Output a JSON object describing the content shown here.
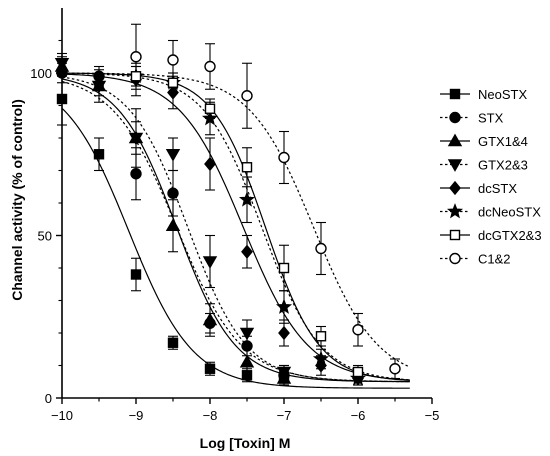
{
  "chart_data": {
    "type": "scatter",
    "xlabel": "Log [Toxin] M",
    "ylabel": "Channel activity (% of control)",
    "xlim": [
      -10,
      -5
    ],
    "ylim": [
      0,
      120
    ],
    "xticks": [
      -10,
      -9,
      -8,
      -7,
      -6,
      -5
    ],
    "yticks": [
      0,
      50,
      100
    ],
    "x_tick_labels": [
      "−10",
      "−9",
      "−8",
      "−7",
      "−6",
      "−5"
    ],
    "y_tick_labels": [
      "0",
      "50",
      "100"
    ],
    "grid": false,
    "legend_position": "right",
    "series": [
      {
        "name": "NeoSTX",
        "marker": "square",
        "filled": true,
        "line": "solid",
        "fit": {
          "logIC50": -9.1,
          "hill": 1.0,
          "top": 100,
          "bottom": 3
        },
        "points": [
          {
            "x": -10,
            "y": 92,
            "err": 8
          },
          {
            "x": -9.5,
            "y": 75,
            "err": 5
          },
          {
            "x": -9,
            "y": 38,
            "err": 5
          },
          {
            "x": -8.5,
            "y": 17,
            "err": 2
          },
          {
            "x": -8,
            "y": 9,
            "err": 2
          },
          {
            "x": -7.5,
            "y": 7,
            "err": 2
          },
          {
            "x": -7,
            "y": 6,
            "err": 2
          }
        ]
      },
      {
        "name": "STX",
        "marker": "circle",
        "filled": true,
        "line": "dotted",
        "fit": {
          "logIC50": -8.45,
          "hill": 1.0,
          "top": 100,
          "bottom": 5
        },
        "points": [
          {
            "x": -10,
            "y": 100,
            "err": 3
          },
          {
            "x": -9.5,
            "y": 99,
            "err": 3
          },
          {
            "x": -9,
            "y": 69,
            "err": 8
          },
          {
            "x": -8.5,
            "y": 63,
            "err": 7
          },
          {
            "x": -8,
            "y": 23,
            "err": 3
          },
          {
            "x": -7.5,
            "y": 16,
            "err": 3
          },
          {
            "x": -7,
            "y": 7,
            "err": 3
          }
        ]
      },
      {
        "name": "GTX1&4",
        "marker": "triangle-up",
        "filled": true,
        "line": "solid",
        "fit": {
          "logIC50": -8.45,
          "hill": 1.1,
          "top": 100,
          "bottom": 5
        },
        "points": [
          {
            "x": -10,
            "y": 102,
            "err": 3
          },
          {
            "x": -9.5,
            "y": 96,
            "err": 5
          },
          {
            "x": -9,
            "y": 80,
            "err": 9
          },
          {
            "x": -8.5,
            "y": 53,
            "err": 8
          },
          {
            "x": -8,
            "y": 24,
            "err": 5
          },
          {
            "x": -7.5,
            "y": 11,
            "err": 5
          },
          {
            "x": -7,
            "y": 6,
            "err": 2
          }
        ]
      },
      {
        "name": "GTX2&3",
        "marker": "triangle-down",
        "filled": true,
        "line": "dotted",
        "fit": {
          "logIC50": -8.3,
          "hill": 1.1,
          "top": 100,
          "bottom": 5
        },
        "points": [
          {
            "x": -10,
            "y": 103,
            "err": 3
          },
          {
            "x": -9.5,
            "y": 96,
            "err": 3
          },
          {
            "x": -9,
            "y": 80,
            "err": 5
          },
          {
            "x": -8.5,
            "y": 75,
            "err": 5
          },
          {
            "x": -8,
            "y": 42,
            "err": 8
          },
          {
            "x": -7.5,
            "y": 20,
            "err": 4
          },
          {
            "x": -7,
            "y": 8,
            "err": 2
          }
        ]
      },
      {
        "name": "dcSTX",
        "marker": "diamond",
        "filled": true,
        "line": "solid",
        "fit": {
          "logIC50": -7.55,
          "hill": 1.0,
          "top": 100,
          "bottom": 5
        },
        "points": [
          {
            "x": -9,
            "y": 98,
            "err": 5
          },
          {
            "x": -8.5,
            "y": 94,
            "err": 5
          },
          {
            "x": -8,
            "y": 72,
            "err": 8
          },
          {
            "x": -7.5,
            "y": 45,
            "err": 5
          },
          {
            "x": -7,
            "y": 20,
            "err": 4
          },
          {
            "x": -6.5,
            "y": 10,
            "err": 3
          },
          {
            "x": -6,
            "y": 6,
            "err": 2
          }
        ]
      },
      {
        "name": "dcNeoSTX",
        "marker": "star",
        "filled": true,
        "line": "dotted",
        "fit": {
          "logIC50": -7.3,
          "hill": 1.1,
          "top": 100,
          "bottom": 5
        },
        "points": [
          {
            "x": -9,
            "y": 99,
            "err": 3
          },
          {
            "x": -8.5,
            "y": 97,
            "err": 3
          },
          {
            "x": -8,
            "y": 86,
            "err": 5
          },
          {
            "x": -7.5,
            "y": 61,
            "err": 7
          },
          {
            "x": -7,
            "y": 28,
            "err": 5
          },
          {
            "x": -6.5,
            "y": 12,
            "err": 3
          },
          {
            "x": -6,
            "y": 6,
            "err": 2
          }
        ]
      },
      {
        "name": "dcGTX2&3",
        "marker": "square",
        "filled": false,
        "line": "solid",
        "fit": {
          "logIC50": -7.25,
          "hill": 1.2,
          "top": 100,
          "bottom": 5
        },
        "points": [
          {
            "x": -9,
            "y": 99,
            "err": 3
          },
          {
            "x": -8.5,
            "y": 97,
            "err": 3
          },
          {
            "x": -8,
            "y": 89,
            "err": 3
          },
          {
            "x": -7.5,
            "y": 71,
            "err": 6
          },
          {
            "x": -7,
            "y": 40,
            "err": 7
          },
          {
            "x": -6.5,
            "y": 19,
            "err": 3
          },
          {
            "x": -6,
            "y": 8,
            "err": 2
          }
        ]
      },
      {
        "name": "C1&2",
        "marker": "circle",
        "filled": false,
        "line": "dotted",
        "fit": {
          "logIC50": -6.6,
          "hill": 1.0,
          "top": 100,
          "bottom": 5
        },
        "points": [
          {
            "x": -9,
            "y": 105,
            "err": 10
          },
          {
            "x": -8.5,
            "y": 104,
            "err": 6
          },
          {
            "x": -8,
            "y": 102,
            "err": 7
          },
          {
            "x": -7.5,
            "y": 93,
            "err": 10
          },
          {
            "x": -7,
            "y": 74,
            "err": 8
          },
          {
            "x": -6.5,
            "y": 46,
            "err": 8
          },
          {
            "x": -6,
            "y": 21,
            "err": 5
          },
          {
            "x": -5.5,
            "y": 9,
            "err": 3
          }
        ]
      }
    ]
  }
}
